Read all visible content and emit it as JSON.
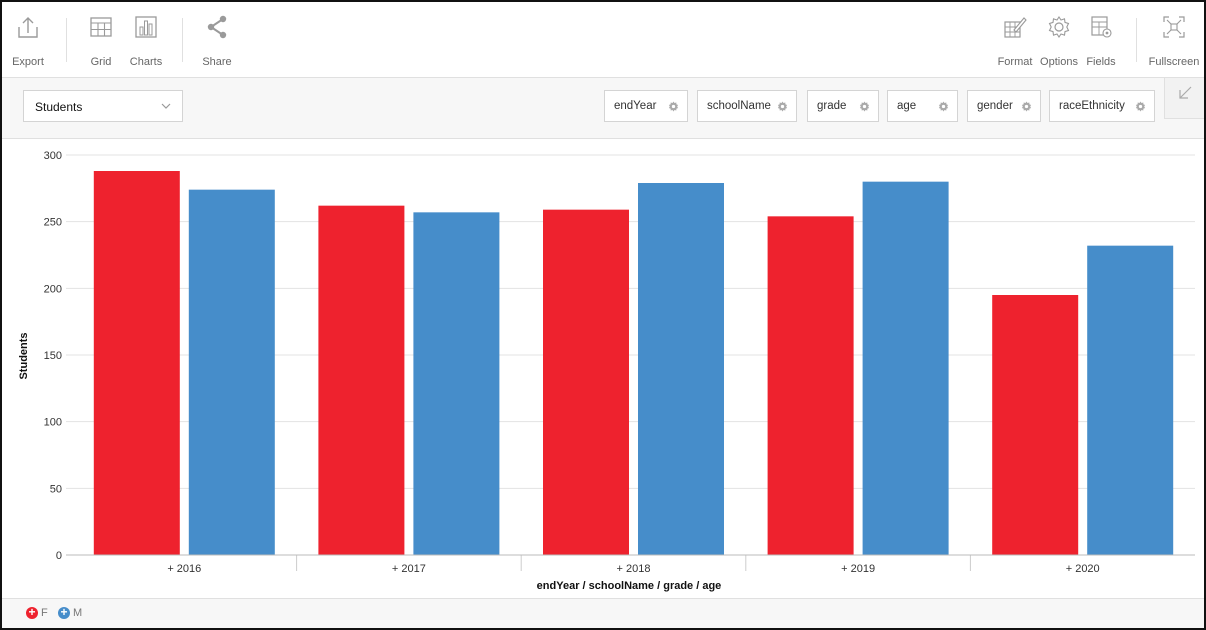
{
  "toolbar": {
    "left": [
      {
        "label": "Export",
        "icon": "export-icon"
      },
      {
        "label": "Grid",
        "icon": "grid-icon"
      },
      {
        "label": "Charts",
        "icon": "charts-icon"
      },
      {
        "label": "Share",
        "icon": "share-icon"
      }
    ],
    "right": [
      {
        "label": "Format",
        "icon": "format-icon"
      },
      {
        "label": "Options",
        "icon": "options-icon"
      },
      {
        "label": "Fields",
        "icon": "fields-icon"
      },
      {
        "label": "Fullscreen",
        "icon": "fullscreen-icon"
      }
    ]
  },
  "filterbar": {
    "measure": "Students",
    "pills": [
      "endYear",
      "schoolName",
      "grade",
      "age",
      "gender",
      "raceEthnicity"
    ]
  },
  "legend": [
    {
      "label": "F",
      "color": "#ee222e"
    },
    {
      "label": "M",
      "color": "#468dca"
    }
  ],
  "chart_data": {
    "type": "bar",
    "categories": [
      "+ 2016",
      "+ 2017",
      "+ 2018",
      "+ 2019",
      "+ 2020"
    ],
    "series": [
      {
        "name": "F",
        "color": "#ee222e",
        "values": [
          288,
          262,
          259,
          254,
          195
        ]
      },
      {
        "name": "M",
        "color": "#468dca",
        "values": [
          274,
          257,
          279,
          280,
          232
        ]
      }
    ],
    "xlabel": "endYear / schoolName / grade / age",
    "ylabel": "Students",
    "ylim": [
      0,
      300
    ],
    "yticks": [
      0,
      50,
      100,
      150,
      200,
      250,
      300
    ],
    "grid": true,
    "legend_position": "bottom-left"
  }
}
